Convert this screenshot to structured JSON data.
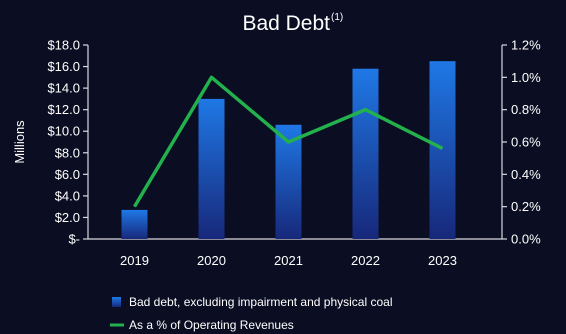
{
  "chart_data": {
    "type": "bar+line",
    "title": "Bad Debt",
    "title_superscript": "(1)",
    "ylabel": "Millions",
    "categories": [
      "2019",
      "2020",
      "2021",
      "2022",
      "2023"
    ],
    "y_left": {
      "ticks": [
        0,
        2,
        4,
        6,
        8,
        10,
        12,
        14,
        16,
        18
      ],
      "tick_labels": [
        "$-",
        "$2.0",
        "$4.0",
        "$6.0",
        "$8.0",
        "$10.0",
        "$12.0",
        "$14.0",
        "$16.0",
        "$18.0"
      ],
      "range": [
        0,
        18
      ]
    },
    "y_right": {
      "ticks": [
        0,
        0.2,
        0.4,
        0.6,
        0.8,
        1.0,
        1.2
      ],
      "tick_labels": [
        "0.0%",
        "0.2%",
        "0.4%",
        "0.6%",
        "0.8%",
        "1.0%",
        "1.2%"
      ],
      "range": [
        0,
        1.2
      ]
    },
    "series": [
      {
        "name": "Bad debt, excluding impairment and physical coal",
        "type": "bar",
        "axis": "left",
        "values": [
          2.7,
          13.0,
          10.6,
          15.8,
          16.5
        ],
        "color": "#1f6fd8"
      },
      {
        "name": "As a % of Operating Revenues",
        "type": "line",
        "axis": "right",
        "values": [
          0.2,
          1.0,
          0.6,
          0.8,
          0.56
        ],
        "color": "#22b14c"
      }
    ],
    "legend_position": "bottom-center",
    "grid": false
  }
}
